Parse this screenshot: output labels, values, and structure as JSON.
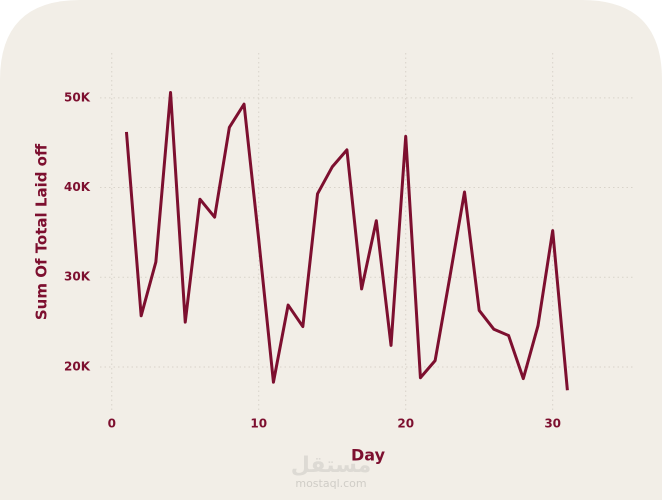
{
  "chart_data": {
    "type": "line",
    "x_label": "Day",
    "y_label": "Sum Of Total Laid off",
    "x": [
      1,
      2,
      3,
      4,
      5,
      6,
      7,
      8,
      9,
      10,
      11,
      12,
      13,
      14,
      15,
      16,
      17,
      18,
      19,
      20,
      21,
      22,
      23,
      24,
      25,
      26,
      27,
      28,
      29,
      30,
      31
    ],
    "series": [
      {
        "name": "Sum Of Total Laid off",
        "color": "#7d0f2f",
        "values": [
          46200,
          25700,
          31700,
          50600,
          25000,
          38700,
          36700,
          46700,
          49300,
          34200,
          18300,
          26900,
          24500,
          39300,
          42300,
          44200,
          28700,
          36300,
          22400,
          45700,
          18800,
          20700,
          30000,
          39500,
          26300,
          24200,
          23500,
          18700,
          24600,
          35200,
          17400
        ]
      }
    ],
    "xlim": [
      -0.8,
      35.6
    ],
    "xticks": [
      0,
      10,
      20,
      30
    ],
    "ylim": [
      15200,
      55000
    ],
    "yticks": [
      {
        "value": 20000,
        "label": "20K"
      },
      {
        "value": 30000,
        "label": "30K"
      },
      {
        "value": 40000,
        "label": "40K"
      },
      {
        "value": 50000,
        "label": "50K"
      }
    ],
    "grid": true,
    "watermark": {
      "arabic": "مستقل",
      "latin": "mostaql.com"
    }
  }
}
